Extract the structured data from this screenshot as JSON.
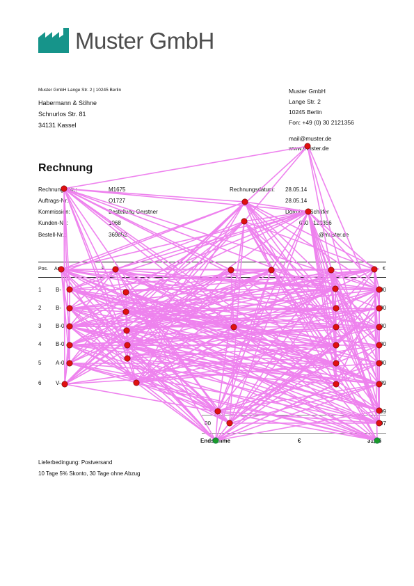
{
  "header": {
    "company_name": "Muster GmbH",
    "sender_line": "Muster GmbH Lange Str. 2 | 10245 Berlin",
    "logo_color": "#16948a"
  },
  "recipient": {
    "lines": [
      "Habermann & Söhne",
      "Schnurlos Str. 81",
      "34131 Kassel"
    ]
  },
  "company_info": {
    "lines": [
      "Muster GmbH",
      "Lange Str. 2",
      "10245 Berlin",
      "Fon: +49 (0) 30 2121356"
    ],
    "email": "mail@muster.de",
    "web": "www.muster.de"
  },
  "document": {
    "title": "Rechnung",
    "meta_left": [
      {
        "label": "Rechnungs-Nr.:",
        "value": "M1675"
      },
      {
        "label": "Auftrags-Nr.:",
        "value": "O1727"
      },
      {
        "label": "Kommission:",
        "value": "Bestellung Gerstner"
      },
      {
        "label": "Kunden-Nr.:",
        "value": "1068"
      },
      {
        "label": "Bestell-Nr.:",
        "value": "369852"
      }
    ],
    "meta_right": [
      {
        "label": "Rechnungsdatum:",
        "value": "28.05.14"
      },
      {
        "label": "",
        "value": "28.05.14"
      },
      {
        "label": "",
        "value": "Dorothee Schäfer"
      },
      {
        "label": "",
        "value": "030 2121356"
      },
      {
        "label": "",
        "value": "@muster.de"
      }
    ]
  },
  "table": {
    "header": {
      "pos": "Pos.",
      "art": "Ar",
      "desc": "B",
      "end": "€"
    },
    "rows": [
      {
        "pos": "1",
        "art": "B-",
        "end": "00"
      },
      {
        "pos": "2",
        "art": "B-",
        "end": "00"
      },
      {
        "pos": "3",
        "art": "B-0",
        "end": "00"
      },
      {
        "pos": "4",
        "art": "B-0",
        "end": "00"
      },
      {
        "pos": "5",
        "art": "A-0",
        "end": "00"
      },
      {
        "pos": "6",
        "art": "V-",
        "end": "09"
      }
    ],
    "sub1": {
      "label": "",
      "right": "99"
    },
    "sub2": {
      "label": "00",
      "right": "97"
    },
    "total": {
      "label": "Endsumme",
      "currency": "€",
      "value": "31,96"
    }
  },
  "footer": {
    "delivery": "Lieferbedingung: Postversand",
    "payment": "10 Tage 5% Skonto, 30 Tage ohne Abzug"
  },
  "overlay": {
    "edge_color": "#ee82ee",
    "node_color": "#e01010",
    "terminal_color": "#1a9a2a"
  }
}
